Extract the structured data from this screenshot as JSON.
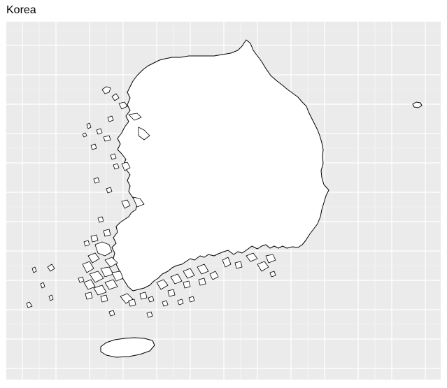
{
  "map": {
    "title": "Korea",
    "panel_background": "#ebebeb",
    "grid_color": "#ffffff",
    "land_fill": "#ffffff",
    "border_color": "#000000"
  }
}
